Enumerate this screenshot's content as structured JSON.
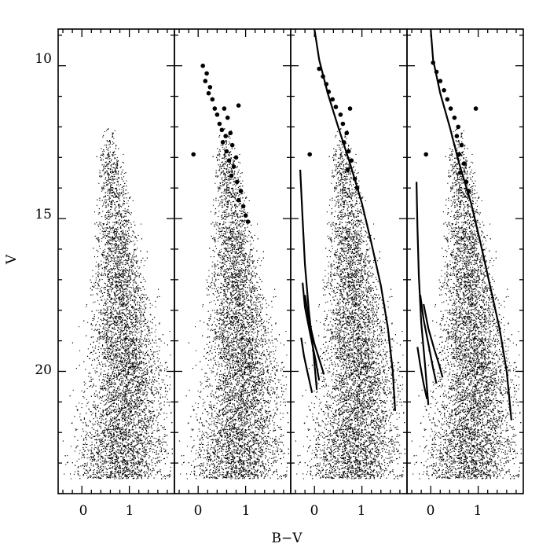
{
  "chart_data": {
    "type": "scatter",
    "layout": "four side-by-side panels sharing the V axis",
    "xlabel": "B−V",
    "ylabel": "V",
    "ylim": [
      8.8,
      24
    ],
    "y_inverted": true,
    "y_ticks": [
      10,
      15,
      20
    ],
    "y_tick_labels": [
      "10",
      "15",
      "20"
    ],
    "panels": [
      {
        "xlim": [
          -0.5,
          1.95
        ],
        "x_ticks": [
          0,
          1
        ],
        "x_tick_labels": [
          "0",
          "1"
        ],
        "points": "field star cloud",
        "bright_stars": [],
        "isochrones": []
      },
      {
        "xlim": [
          -0.5,
          1.95
        ],
        "x_ticks": [
          0,
          1
        ],
        "x_tick_labels": [
          "0",
          "1"
        ],
        "points": "field star cloud",
        "bright_stars": [
          [
            0.1,
            10.0
          ],
          [
            0.18,
            10.25
          ],
          [
            0.15,
            10.5
          ],
          [
            0.25,
            10.7
          ],
          [
            0.22,
            10.9
          ],
          [
            0.3,
            11.1
          ],
          [
            0.35,
            11.4
          ],
          [
            0.4,
            11.6
          ],
          [
            0.55,
            11.4
          ],
          [
            0.62,
            11.7
          ],
          [
            0.45,
            11.9
          ],
          [
            0.5,
            12.1
          ],
          [
            0.58,
            12.3
          ],
          [
            0.68,
            12.2
          ],
          [
            0.52,
            12.5
          ],
          [
            0.6,
            12.8
          ],
          [
            0.72,
            12.6
          ],
          [
            0.65,
            13.1
          ],
          [
            0.75,
            13.3
          ],
          [
            0.8,
            13.0
          ],
          [
            0.7,
            13.6
          ],
          [
            0.82,
            13.8
          ],
          [
            0.9,
            14.1
          ],
          [
            0.85,
            14.4
          ],
          [
            0.95,
            14.6
          ],
          [
            1.0,
            14.9
          ],
          [
            1.05,
            15.1
          ],
          [
            0.85,
            11.3
          ],
          [
            -0.1,
            12.9
          ]
        ],
        "isochrones": []
      },
      {
        "xlim": [
          -0.5,
          1.95
        ],
        "x_ticks": [
          0,
          1
        ],
        "x_tick_labels": [
          "0",
          "1"
        ],
        "points": "field star cloud",
        "bright_stars": [
          [
            0.1,
            10.1
          ],
          [
            0.18,
            10.35
          ],
          [
            0.25,
            10.6
          ],
          [
            0.3,
            10.85
          ],
          [
            0.38,
            11.1
          ],
          [
            0.45,
            11.35
          ],
          [
            0.55,
            11.6
          ],
          [
            0.6,
            11.9
          ],
          [
            0.68,
            12.2
          ],
          [
            0.62,
            12.5
          ],
          [
            0.72,
            12.8
          ],
          [
            0.78,
            13.1
          ],
          [
            0.7,
            13.4
          ],
          [
            0.85,
            13.7
          ],
          [
            0.9,
            14.0
          ],
          [
            0.75,
            11.4
          ],
          [
            -0.1,
            12.9
          ]
        ],
        "isochrones": [
          {
            "name": "main track",
            "points": [
              [
                0.0,
                8.8
              ],
              [
                0.1,
                9.8
              ],
              [
                0.28,
                10.9
              ],
              [
                0.5,
                12.0
              ],
              [
                0.75,
                13.2
              ],
              [
                1.0,
                14.5
              ],
              [
                1.2,
                15.8
              ],
              [
                1.4,
                17.2
              ],
              [
                1.55,
                18.6
              ],
              [
                1.65,
                20.0
              ],
              [
                1.7,
                21.3
              ]
            ]
          },
          {
            "name": "blue track 1",
            "points": [
              [
                -0.3,
                13.4
              ],
              [
                -0.25,
                15.0
              ],
              [
                -0.2,
                16.5
              ],
              [
                -0.12,
                18.0
              ],
              [
                -0.02,
                19.4
              ],
              [
                0.05,
                20.6
              ]
            ]
          },
          {
            "name": "blue track 2",
            "points": [
              [
                -0.25,
                17.1
              ],
              [
                -0.2,
                17.9
              ],
              [
                -0.1,
                18.7
              ],
              [
                0.02,
                19.6
              ],
              [
                0.1,
                20.3
              ]
            ]
          },
          {
            "name": "blue track 3",
            "points": [
              [
                -0.2,
                17.5
              ],
              [
                -0.12,
                18.3
              ],
              [
                0.0,
                19.1
              ],
              [
                0.12,
                19.7
              ],
              [
                0.2,
                20.1
              ]
            ]
          },
          {
            "name": "blue track 4",
            "points": [
              [
                -0.28,
                18.9
              ],
              [
                -0.22,
                19.5
              ],
              [
                -0.15,
                20.0
              ],
              [
                -0.05,
                20.7
              ]
            ]
          }
        ]
      },
      {
        "xlim": [
          -0.5,
          1.95
        ],
        "x_ticks": [
          0,
          1
        ],
        "x_tick_labels": [
          "0",
          "1"
        ],
        "points": "field star cloud",
        "bright_stars": [
          [
            0.05,
            9.9
          ],
          [
            0.12,
            10.2
          ],
          [
            0.2,
            10.5
          ],
          [
            0.28,
            10.8
          ],
          [
            0.35,
            11.1
          ],
          [
            0.42,
            11.4
          ],
          [
            0.5,
            11.7
          ],
          [
            0.58,
            12.0
          ],
          [
            0.55,
            12.3
          ],
          [
            0.65,
            12.6
          ],
          [
            0.6,
            12.9
          ],
          [
            0.7,
            13.2
          ],
          [
            0.62,
            13.5
          ],
          [
            0.75,
            13.8
          ],
          [
            0.8,
            14.1
          ],
          [
            0.95,
            11.4
          ],
          [
            -0.1,
            12.9
          ]
        ],
        "isochrones": [
          {
            "name": "main track",
            "points": [
              [
                0.0,
                8.8
              ],
              [
                0.05,
                9.8
              ],
              [
                0.2,
                10.9
              ],
              [
                0.4,
                12.0
              ],
              [
                0.6,
                13.2
              ],
              [
                0.85,
                14.5
              ],
              [
                1.05,
                15.8
              ],
              [
                1.25,
                17.2
              ],
              [
                1.45,
                18.6
              ],
              [
                1.6,
                20.0
              ],
              [
                1.7,
                21.6
              ]
            ]
          },
          {
            "name": "blue track 1",
            "points": [
              [
                -0.3,
                13.8
              ],
              [
                -0.28,
                15.3
              ],
              [
                -0.25,
                16.9
              ],
              [
                -0.2,
                18.4
              ],
              [
                -0.12,
                19.8
              ],
              [
                -0.05,
                21.1
              ]
            ]
          },
          {
            "name": "blue track 2",
            "points": [
              [
                -0.22,
                17.5
              ],
              [
                -0.15,
                18.3
              ],
              [
                -0.05,
                19.1
              ],
              [
                0.05,
                19.9
              ],
              [
                0.12,
                20.4
              ]
            ]
          },
          {
            "name": "blue track 3",
            "points": [
              [
                -0.15,
                17.8
              ],
              [
                -0.05,
                18.6
              ],
              [
                0.08,
                19.3
              ],
              [
                0.18,
                19.8
              ],
              [
                0.25,
                20.2
              ]
            ]
          },
          {
            "name": "blue track 4",
            "points": [
              [
                -0.28,
                19.2
              ],
              [
                -0.22,
                19.8
              ],
              [
                -0.15,
                20.4
              ],
              [
                -0.08,
                20.9
              ]
            ]
          }
        ]
      }
    ]
  }
}
